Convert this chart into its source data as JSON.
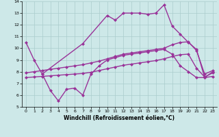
{
  "xlabel": "Windchill (Refroidissement éolien,°C)",
  "bg_color": "#cde8e8",
  "line_color": "#993399",
  "grid_color": "#aacccc",
  "xlim": [
    -0.5,
    23.5
  ],
  "ylim": [
    5,
    14
  ],
  "xticks": [
    0,
    1,
    2,
    3,
    4,
    5,
    6,
    7,
    8,
    9,
    10,
    11,
    12,
    13,
    14,
    15,
    16,
    17,
    18,
    19,
    20,
    21,
    22,
    23
  ],
  "yticks": [
    5,
    6,
    7,
    8,
    9,
    10,
    11,
    12,
    13,
    14
  ],
  "line1_x": [
    0,
    1,
    2,
    7,
    10,
    11,
    12,
    13,
    14,
    15,
    16,
    17,
    18,
    19,
    20,
    21,
    22,
    23
  ],
  "line1_y": [
    10.5,
    9.0,
    7.8,
    10.4,
    12.8,
    12.4,
    13.0,
    13.0,
    13.0,
    12.9,
    13.0,
    13.7,
    11.9,
    11.2,
    10.5,
    9.9,
    7.5,
    8.0
  ],
  "line2_x": [
    0,
    1,
    2,
    3,
    4,
    5,
    6,
    7,
    8,
    9,
    10,
    11,
    12,
    13,
    14,
    15,
    16,
    17,
    18,
    19,
    20,
    21,
    22,
    23
  ],
  "line2_y": [
    7.9,
    8.0,
    8.1,
    8.2,
    8.3,
    8.4,
    8.5,
    8.6,
    8.75,
    8.9,
    9.1,
    9.3,
    9.5,
    9.6,
    9.7,
    9.8,
    9.9,
    10.0,
    10.3,
    10.5,
    10.55,
    9.8,
    7.8,
    8.1
  ],
  "line3_x": [
    0,
    1,
    2,
    3,
    4,
    5,
    6,
    7,
    8,
    9,
    10,
    11,
    12,
    13,
    14,
    15,
    16,
    17,
    18,
    19,
    20,
    21,
    22,
    23
  ],
  "line3_y": [
    7.5,
    7.55,
    7.6,
    7.65,
    7.7,
    7.75,
    7.8,
    7.85,
    7.95,
    8.1,
    8.25,
    8.4,
    8.55,
    8.65,
    8.75,
    8.85,
    8.95,
    9.1,
    9.3,
    9.45,
    9.5,
    8.3,
    7.55,
    7.9
  ],
  "line4_x": [
    2,
    3,
    4,
    5,
    6,
    7,
    8,
    9,
    10,
    11,
    12,
    13,
    14,
    15,
    16,
    17,
    18,
    19,
    20,
    21,
    22,
    23
  ],
  "line4_y": [
    7.8,
    6.4,
    5.5,
    6.5,
    6.6,
    6.0,
    7.8,
    8.5,
    9.0,
    9.2,
    9.4,
    9.5,
    9.6,
    9.7,
    9.8,
    9.9,
    9.5,
    8.5,
    8.0,
    7.5,
    7.5,
    7.6
  ],
  "marker": "D",
  "markersize": 2.0,
  "linewidth": 1.0
}
